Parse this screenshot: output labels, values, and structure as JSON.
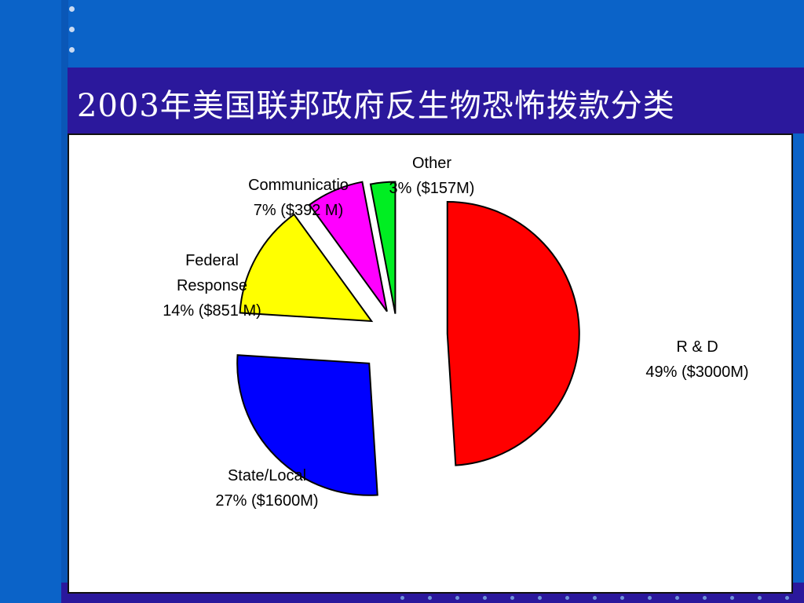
{
  "title": "2003年美国联邦政府反生物恐怖拨款分类",
  "chart_data": {
    "type": "pie",
    "title": "2003年美国联邦政府反生物恐怖拨款分类",
    "slices": [
      {
        "label_lines": [
          "R & D",
          "49% ($3000M)"
        ],
        "name": "R & D",
        "percent": 49,
        "amount_musd": 3000,
        "color": "#ff0000"
      },
      {
        "label_lines": [
          "State/Local",
          "27% ($1600M)"
        ],
        "name": "State/Local",
        "percent": 27,
        "amount_musd": 1600,
        "color": "#0000ff"
      },
      {
        "label_lines": [
          "Federal",
          "Response",
          "14% ($851 M)"
        ],
        "name": "Federal Response",
        "percent": 14,
        "amount_musd": 851,
        "color": "#ffff00"
      },
      {
        "label_lines": [
          "Communicatio",
          "7% ($392 M)"
        ],
        "name": "Communicatio",
        "percent": 7,
        "amount_musd": 392,
        "color": "#ff00ff"
      },
      {
        "label_lines": [
          "Other",
          "3% ($157M)"
        ],
        "name": "Other",
        "percent": 3,
        "amount_musd": 157,
        "color": "#00ee22"
      }
    ]
  }
}
